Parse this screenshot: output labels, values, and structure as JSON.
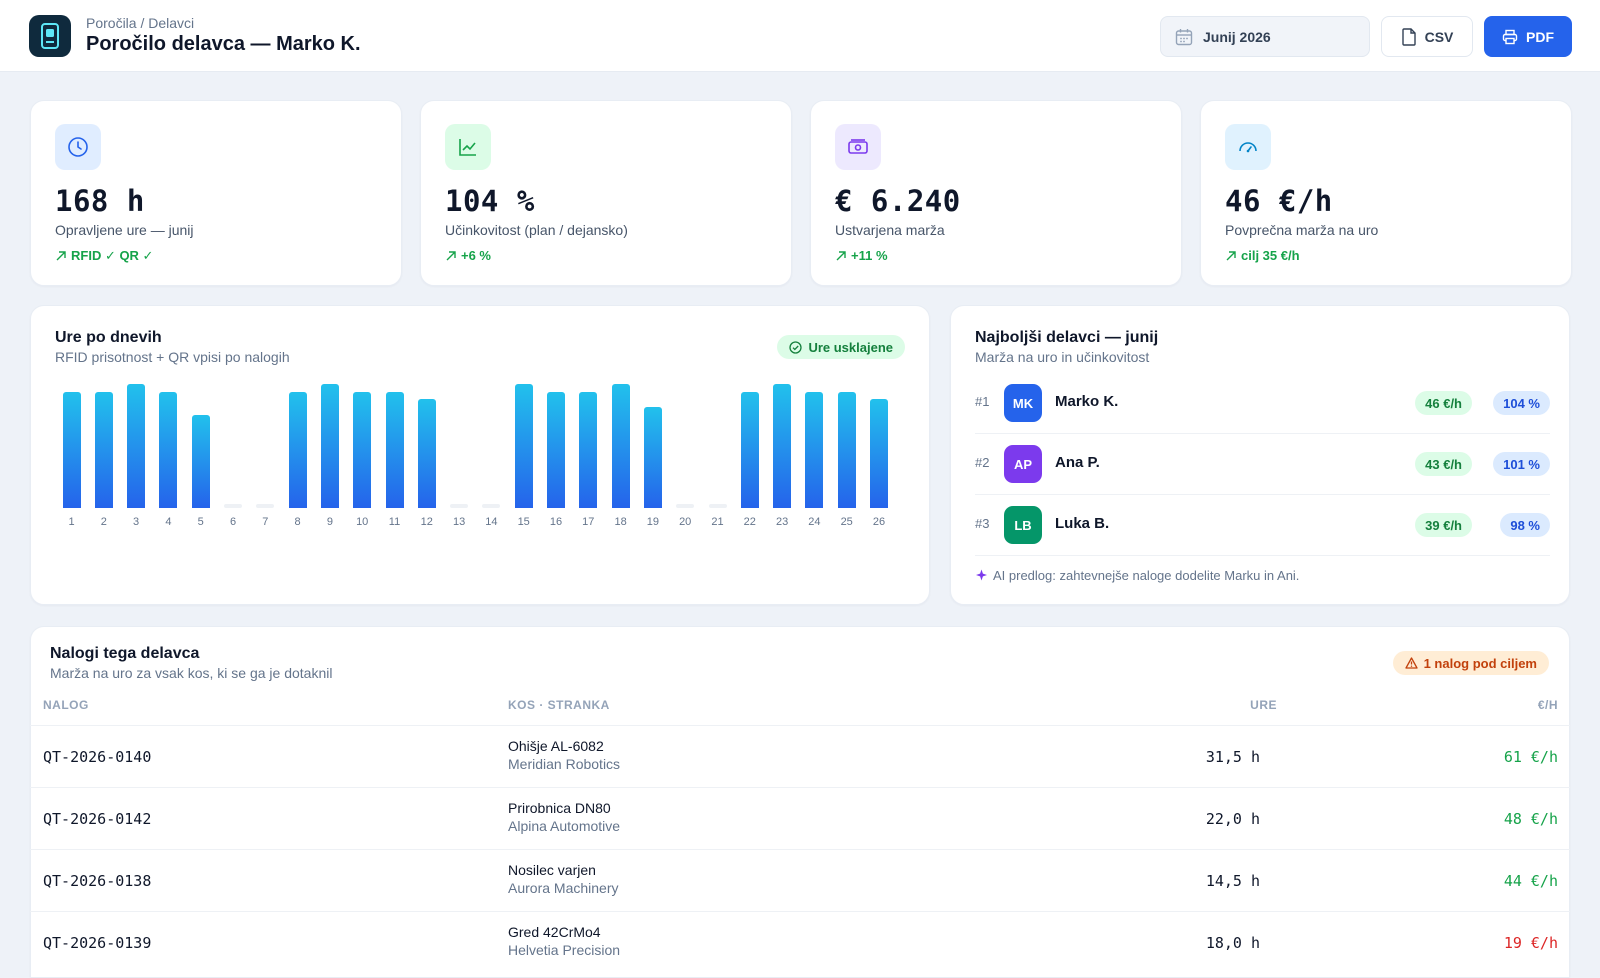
{
  "header": {
    "breadcrumb": "Poročila / Delavci",
    "title": "Poročilo delavca — Marko K.",
    "month": "Junij 2026",
    "csv_label": "CSV",
    "pdf_label": "PDF"
  },
  "kpis": [
    {
      "value": "168 h",
      "label": "Opravljene ure — junij",
      "delta": "RFID ✓ QR ✓",
      "icon": "clock-icon"
    },
    {
      "value": "104 %",
      "label": "Učinkovitost (plan / dejansko)",
      "delta": "+6 %",
      "icon": "trend-chart-icon"
    },
    {
      "value": "€ 6.240",
      "label": "Ustvarjena marža",
      "delta": "+11 %",
      "icon": "cash-icon"
    },
    {
      "value": "46 €/h",
      "label": "Povprečna marža na uro",
      "delta": "cilj 35 €/h",
      "icon": "gauge-icon"
    }
  ],
  "daily": {
    "title": "Ure po dnevih",
    "subtitle": "RFID prisotnost + QR vpisi po nalogih",
    "badge": "Ure usklajene"
  },
  "chart_data": {
    "type": "bar",
    "title": "Ure po dnevih",
    "categories": [
      "1",
      "2",
      "3",
      "4",
      "5",
      "6",
      "7",
      "8",
      "9",
      "10",
      "11",
      "12",
      "13",
      "14",
      "15",
      "16",
      "17",
      "18",
      "19",
      "20",
      "21",
      "22",
      "23",
      "24",
      "25",
      "26"
    ],
    "values": [
      7.5,
      7.5,
      8,
      7.5,
      6,
      0,
      0,
      7.5,
      8,
      7.5,
      7.5,
      7,
      0,
      0,
      8,
      7.5,
      7.5,
      8,
      6.5,
      0,
      0,
      7.5,
      8,
      7.5,
      7.5,
      7
    ],
    "ylim": [
      0,
      8
    ],
    "grid": false,
    "color": "#2563eb"
  },
  "ranking": {
    "title": "Najboljši delavci — junij",
    "subtitle": "Marža na uro in učinkovitost",
    "rows": [
      {
        "rank": "#1",
        "initials": "MK",
        "name": "Marko K.",
        "rate": "46 €/h",
        "eff": "104 %",
        "color": "#2563eb"
      },
      {
        "rank": "#2",
        "initials": "AP",
        "name": "Ana P.",
        "rate": "43 €/h",
        "eff": "101 %",
        "color": "#7c3aed"
      },
      {
        "rank": "#3",
        "initials": "LB",
        "name": "Luka B.",
        "rate": "39 €/h",
        "eff": "98 %",
        "color": "#059669"
      }
    ],
    "ai_hint": "AI predlog: zahtevnejše naloge dodelite Marku in Ani."
  },
  "orders": {
    "title": "Nalogi tega delavca",
    "subtitle": "Marža na uro za vsak kos, ki se ga je dotaknil",
    "warning": "1 nalog pod ciljem",
    "columns": [
      "NALOG",
      "KOS · STRANKA",
      "URE",
      "€/H"
    ],
    "rows": [
      {
        "code": "QT-2026-0140",
        "part": "Ohišje AL-6082",
        "client": "Meridian Robotics",
        "hours": "31,5 h",
        "rate": "61 €/h",
        "below": false
      },
      {
        "code": "QT-2026-0142",
        "part": "Prirobnica DN80",
        "client": "Alpina Automotive",
        "hours": "22,0 h",
        "rate": "48 €/h",
        "below": false
      },
      {
        "code": "QT-2026-0138",
        "part": "Nosilec varjen",
        "client": "Aurora Machinery",
        "hours": "14,5 h",
        "rate": "44 €/h",
        "below": false
      },
      {
        "code": "QT-2026-0139",
        "part": "Gred 42CrMo4",
        "client": "Helvetia Precision",
        "hours": "18,0 h",
        "rate": "19 €/h",
        "below": true
      }
    ]
  },
  "colors": {
    "accent": "#2563eb",
    "positive": "#16a34a",
    "negative": "#dc2626",
    "warning": "#ea580c"
  }
}
